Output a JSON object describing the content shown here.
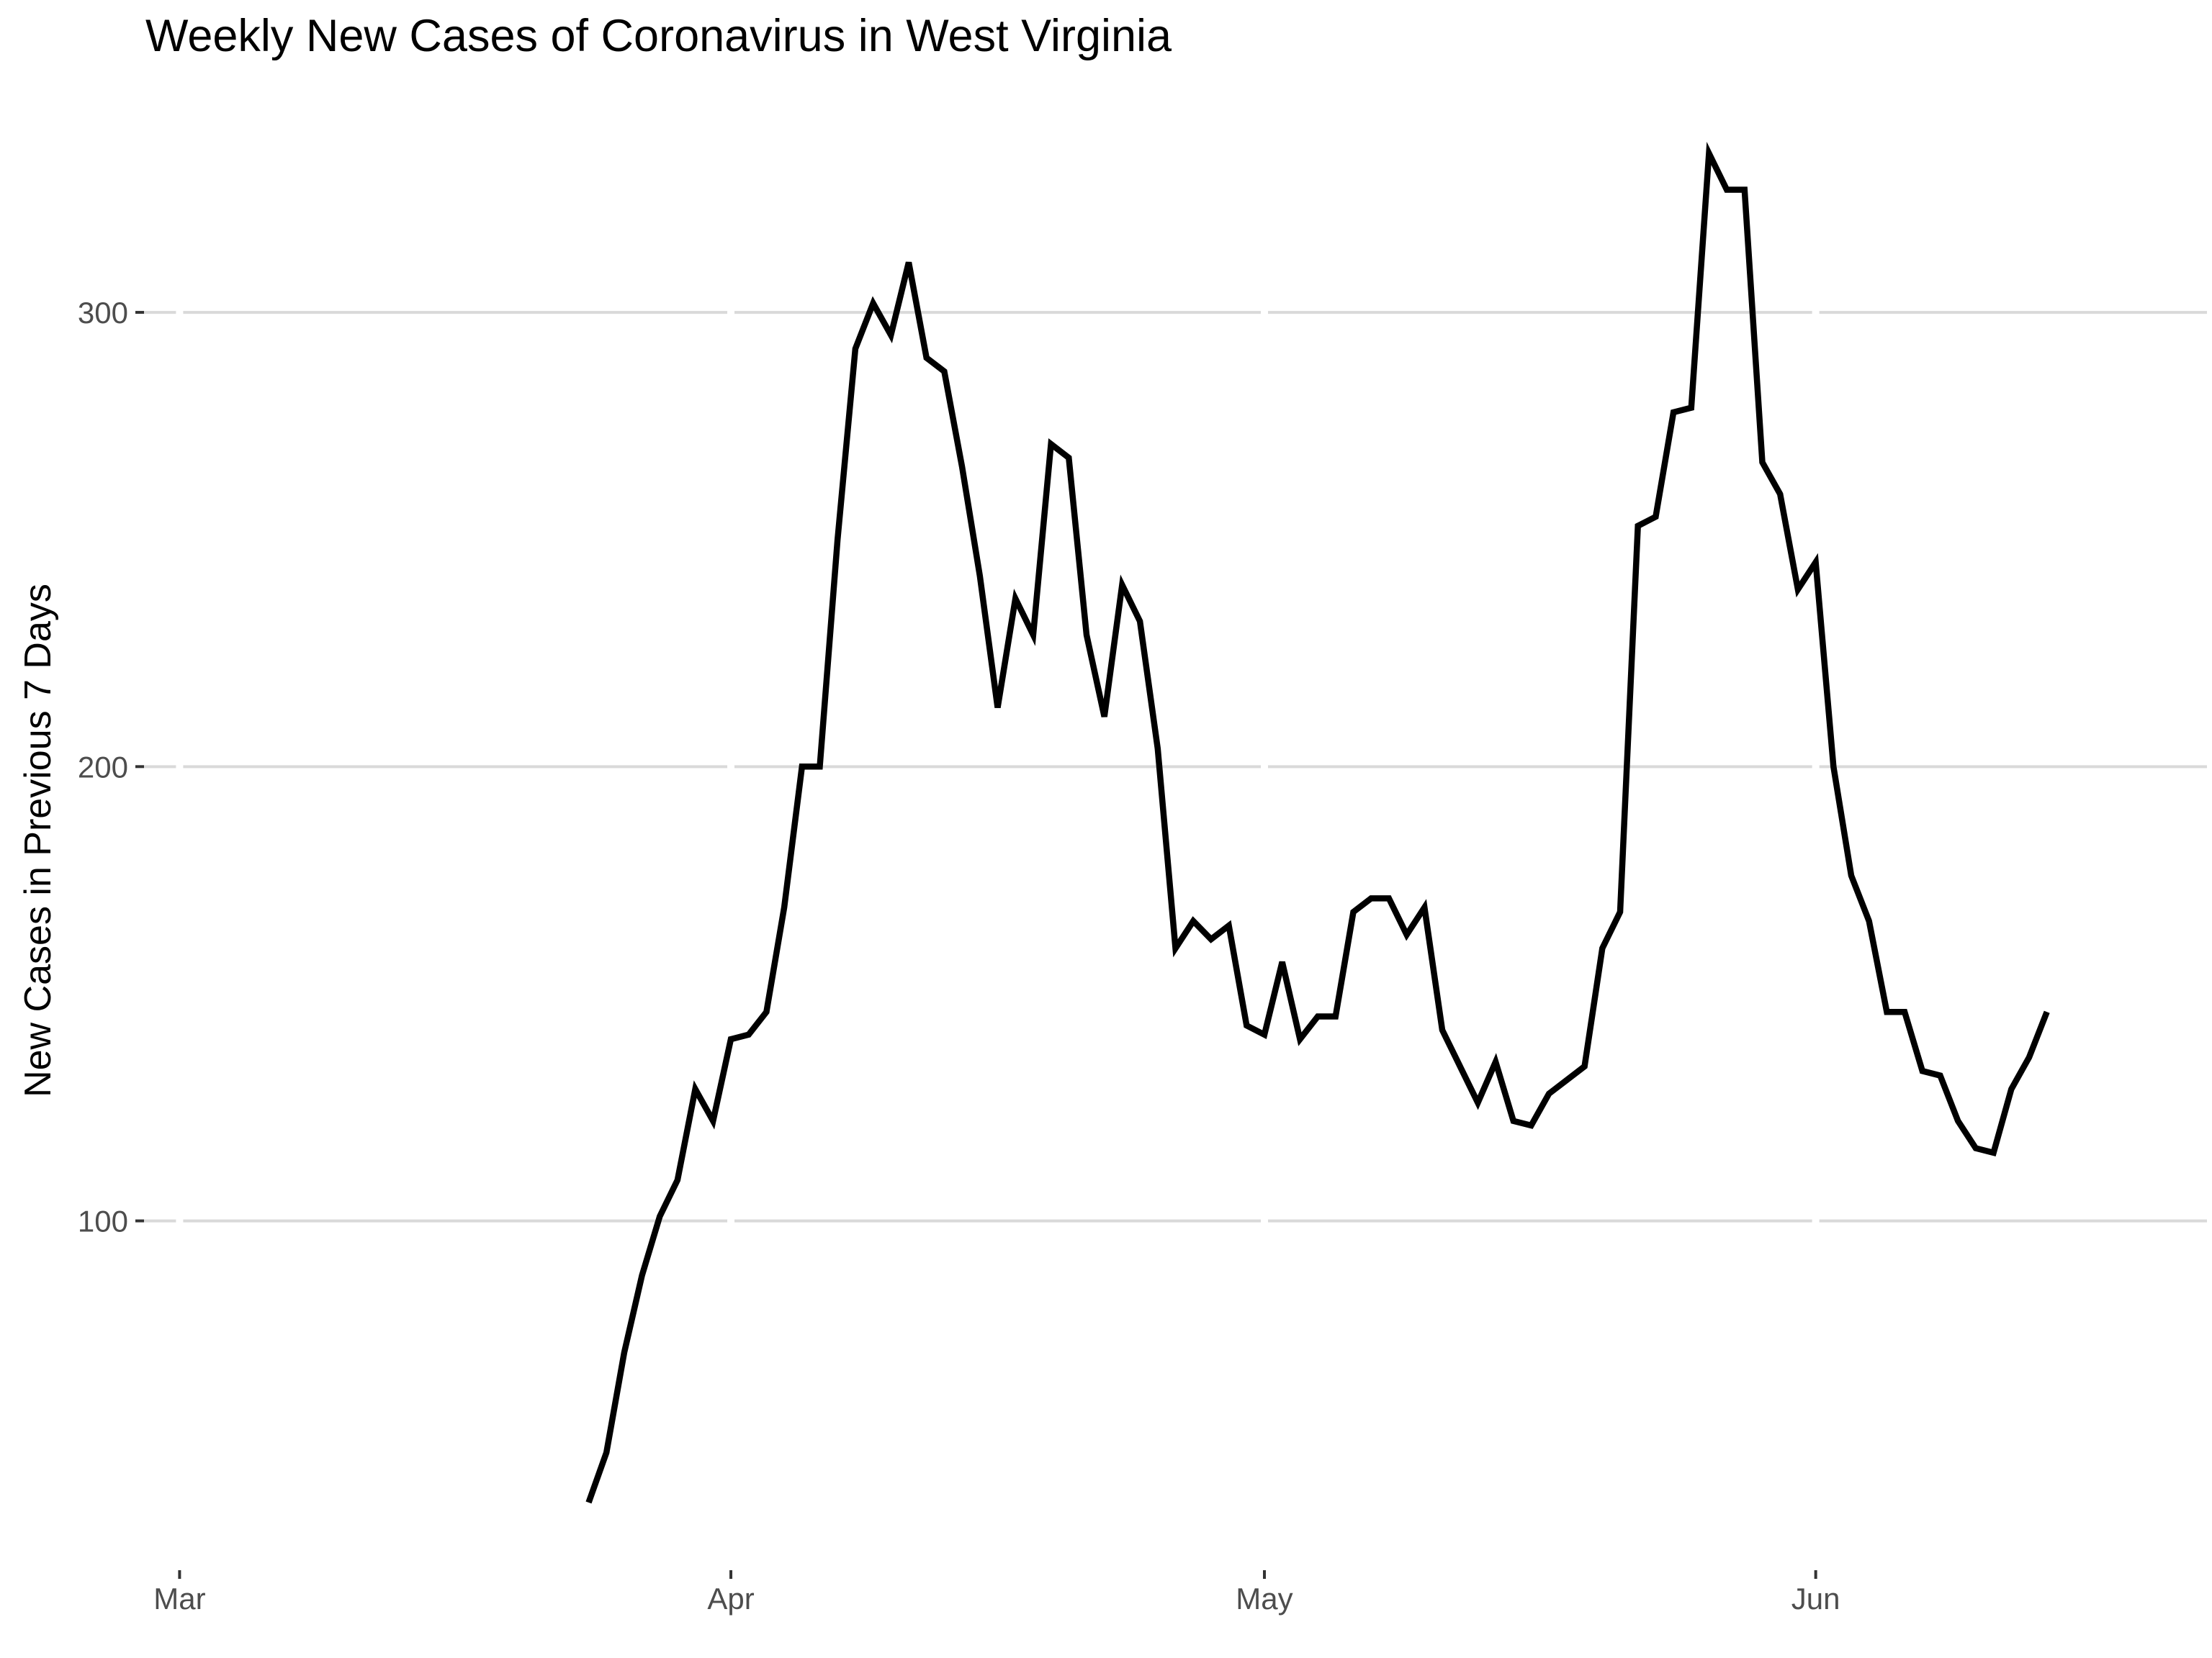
{
  "chart_data": {
    "type": "line",
    "title": "Weekly New Cases of Coronavirus in West Virginia",
    "xlabel": "",
    "ylabel": "New Cases in Previous 7 Days",
    "x_axis": {
      "kind": "date",
      "min": "2020-02-28",
      "max": "2020-06-23",
      "ticks": [
        {
          "date": "2020-03-01",
          "label": "Mar"
        },
        {
          "date": "2020-04-01",
          "label": "Apr"
        },
        {
          "date": "2020-05-01",
          "label": "May"
        },
        {
          "date": "2020-06-01",
          "label": "Jun"
        }
      ]
    },
    "y_axis": {
      "min": 25,
      "max": 345,
      "ticks": [
        100,
        200,
        300
      ]
    },
    "grid": true,
    "legend": "none",
    "color": "#000000",
    "series": [
      {
        "x": [
          "2020-03-24",
          "2020-03-25",
          "2020-03-26",
          "2020-03-27",
          "2020-03-28",
          "2020-03-29",
          "2020-03-30",
          "2020-03-31",
          "2020-04-01",
          "2020-04-02",
          "2020-04-03",
          "2020-04-04",
          "2020-04-05",
          "2020-04-06",
          "2020-04-07",
          "2020-04-08",
          "2020-04-09",
          "2020-04-10",
          "2020-04-11",
          "2020-04-12",
          "2020-04-13",
          "2020-04-14",
          "2020-04-15",
          "2020-04-16",
          "2020-04-17",
          "2020-04-18",
          "2020-04-19",
          "2020-04-20",
          "2020-04-21",
          "2020-04-22",
          "2020-04-23",
          "2020-04-24",
          "2020-04-25",
          "2020-04-26",
          "2020-04-27",
          "2020-04-28",
          "2020-04-29",
          "2020-04-30",
          "2020-05-01",
          "2020-05-02",
          "2020-05-03",
          "2020-05-04",
          "2020-05-05",
          "2020-05-06",
          "2020-05-07",
          "2020-05-08",
          "2020-05-09",
          "2020-05-10",
          "2020-05-11",
          "2020-05-12",
          "2020-05-13",
          "2020-05-14",
          "2020-05-15",
          "2020-05-16",
          "2020-05-17",
          "2020-05-18",
          "2020-05-19",
          "2020-05-20",
          "2020-05-21",
          "2020-05-22",
          "2020-05-23",
          "2020-05-24",
          "2020-05-25",
          "2020-05-26",
          "2020-05-27",
          "2020-05-28",
          "2020-05-29",
          "2020-05-30",
          "2020-05-31",
          "2020-06-01",
          "2020-06-02",
          "2020-06-03",
          "2020-06-04",
          "2020-06-05",
          "2020-06-06",
          "2020-06-07",
          "2020-06-08",
          "2020-06-09",
          "2020-06-10",
          "2020-06-11",
          "2020-06-12",
          "2020-06-13",
          "2020-06-14"
        ],
        "values": [
          38,
          49,
          71,
          88,
          101,
          109,
          129,
          122,
          140,
          141,
          146,
          169,
          200,
          200,
          250,
          292,
          302,
          295,
          311,
          290,
          287,
          266,
          242,
          213,
          237,
          229,
          271,
          268,
          229,
          211,
          240,
          232,
          204,
          160,
          166,
          162,
          165,
          143,
          141,
          157,
          140,
          145,
          145,
          168,
          171,
          171,
          163,
          169,
          142,
          134,
          126,
          135,
          122,
          121,
          128,
          131,
          134,
          160,
          168,
          253,
          255,
          278,
          279,
          335,
          327,
          327,
          267,
          260,
          239,
          245,
          200,
          176,
          166,
          146,
          146,
          133,
          132,
          122,
          116,
          115,
          129,
          136,
          146
        ]
      }
    ]
  }
}
